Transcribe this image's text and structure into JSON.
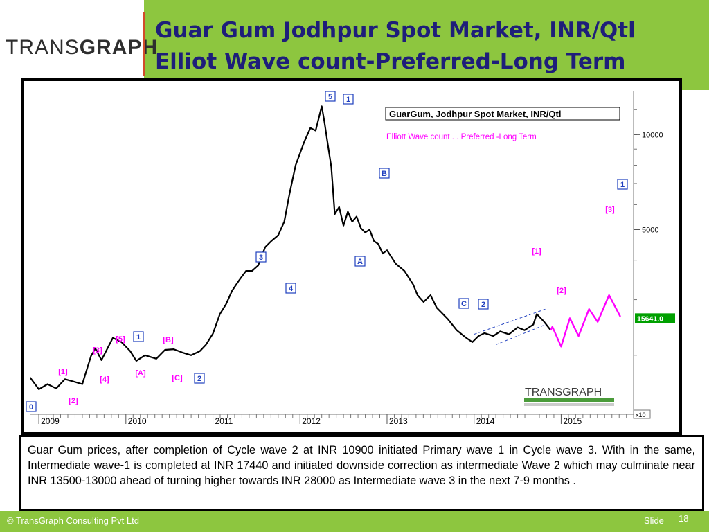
{
  "header": {
    "logo_thin": "TRANS",
    "logo_bold": "GRAPH",
    "title_line1": "Guar Gum Jodhpur Spot Market, INR/Qtl",
    "title_line2": "Elliot Wave count-Preferred-Long Term"
  },
  "chart_data": {
    "type": "line",
    "title": "GuarGum, Jodhpur Spot Market, INR/Qtl",
    "subtitle": "Elliott Wave count . . Preferred -Long Term",
    "y_scale": "log",
    "x_tick_labels": [
      "2009",
      "2010",
      "2011",
      "2012",
      "2013",
      "2014",
      "2015"
    ],
    "y_tick_labels": [
      "10000",
      "5000"
    ],
    "y_ticks": [
      10000,
      5000
    ],
    "x_multiplier_label": "x10",
    "last_price_label": "15641.0",
    "last_price_color": "#00a000",
    "projection_color": "#ff00ff",
    "price_color": "#000000",
    "series": [
      {
        "values": [
          [
            2008.9,
            1700
          ],
          [
            2009.0,
            1560
          ],
          [
            2009.1,
            1620
          ],
          [
            2009.2,
            1570
          ],
          [
            2009.3,
            1680
          ],
          [
            2009.4,
            1650
          ],
          [
            2009.5,
            1620
          ],
          [
            2009.6,
            1990
          ],
          [
            2009.65,
            2100
          ],
          [
            2009.72,
            1930
          ],
          [
            2009.85,
            2270
          ],
          [
            2009.95,
            2200
          ],
          [
            2010.05,
            2060
          ],
          [
            2010.12,
            1920
          ],
          [
            2010.22,
            2000
          ],
          [
            2010.35,
            1950
          ],
          [
            2010.45,
            2080
          ],
          [
            2010.55,
            2090
          ],
          [
            2010.65,
            2040
          ],
          [
            2010.75,
            2000
          ],
          [
            2010.85,
            2060
          ],
          [
            2010.92,
            2160
          ],
          [
            2011.0,
            2340
          ],
          [
            2011.08,
            2700
          ],
          [
            2011.15,
            2900
          ],
          [
            2011.22,
            3200
          ],
          [
            2011.3,
            3450
          ],
          [
            2011.38,
            3700
          ],
          [
            2011.45,
            3700
          ],
          [
            2011.52,
            3850
          ],
          [
            2011.6,
            4400
          ],
          [
            2011.67,
            4600
          ],
          [
            2011.75,
            4800
          ],
          [
            2011.82,
            5300
          ],
          [
            2011.88,
            6500
          ],
          [
            2011.95,
            8000
          ],
          [
            2012.05,
            9500
          ],
          [
            2012.12,
            10500
          ],
          [
            2012.18,
            10300
          ],
          [
            2012.25,
            12300
          ],
          [
            2012.28,
            11000
          ],
          [
            2012.32,
            9300
          ],
          [
            2012.36,
            7900
          ],
          [
            2012.4,
            5600
          ],
          [
            2012.45,
            5900
          ],
          [
            2012.5,
            5150
          ],
          [
            2012.55,
            5700
          ],
          [
            2012.6,
            5300
          ],
          [
            2012.65,
            5500
          ],
          [
            2012.7,
            5050
          ],
          [
            2012.75,
            4900
          ],
          [
            2012.8,
            5000
          ],
          [
            2012.85,
            4600
          ],
          [
            2012.9,
            4500
          ],
          [
            2012.95,
            4200
          ],
          [
            2013.0,
            4300
          ],
          [
            2013.1,
            3900
          ],
          [
            2013.2,
            3700
          ],
          [
            2013.3,
            3350
          ],
          [
            2013.35,
            3100
          ],
          [
            2013.42,
            2950
          ],
          [
            2013.5,
            3100
          ],
          [
            2013.57,
            2830
          ],
          [
            2013.7,
            2600
          ],
          [
            2013.8,
            2400
          ],
          [
            2013.9,
            2280
          ],
          [
            2013.98,
            2200
          ],
          [
            2014.05,
            2300
          ],
          [
            2014.12,
            2350
          ],
          [
            2014.22,
            2300
          ],
          [
            2014.3,
            2380
          ],
          [
            2014.4,
            2330
          ],
          [
            2014.5,
            2450
          ],
          [
            2014.58,
            2400
          ],
          [
            2014.68,
            2500
          ],
          [
            2014.72,
            2700
          ],
          [
            2014.8,
            2560
          ],
          [
            2014.88,
            2400
          ]
        ]
      },
      {
        "values": [
          [
            2014.9,
            2460
          ],
          [
            2015.0,
            2130
          ],
          [
            2015.1,
            2620
          ],
          [
            2015.2,
            2300
          ],
          [
            2015.32,
            2800
          ],
          [
            2015.42,
            2550
          ],
          [
            2015.55,
            3100
          ],
          [
            2015.68,
            2650
          ]
        ]
      }
    ],
    "annotations": [
      {
        "label": "0",
        "boxed": true,
        "color": "#1f3fbf"
      },
      {
        "label": "[1]",
        "boxed": false,
        "color": "#ff00ff"
      },
      {
        "label": "[2]",
        "boxed": false,
        "color": "#ff00ff"
      },
      {
        "label": "[3]",
        "boxed": false,
        "color": "#ff00ff"
      },
      {
        "label": "[4]",
        "boxed": false,
        "color": "#ff00ff"
      },
      {
        "label": "[5]",
        "boxed": false,
        "color": "#ff00ff"
      },
      {
        "label": "1",
        "boxed": true,
        "color": "#1f3fbf"
      },
      {
        "label": "[A]",
        "boxed": false,
        "color": "#ff00ff"
      },
      {
        "label": "[B]",
        "boxed": false,
        "color": "#ff00ff"
      },
      {
        "label": "[C]",
        "boxed": false,
        "color": "#ff00ff"
      },
      {
        "label": "2",
        "boxed": true,
        "color": "#1f3fbf"
      },
      {
        "label": "3",
        "boxed": true,
        "color": "#1f3fbf"
      },
      {
        "label": "4",
        "boxed": true,
        "color": "#1f3fbf"
      },
      {
        "label": "5",
        "boxed": true,
        "color": "#1f3fbf"
      },
      {
        "label": "1",
        "boxed": true,
        "color": "#1f3fbf"
      },
      {
        "label": "A",
        "boxed": true,
        "color": "#1f3fbf"
      },
      {
        "label": "B",
        "boxed": true,
        "color": "#1f3fbf"
      },
      {
        "label": "C",
        "boxed": true,
        "color": "#1f3fbf"
      },
      {
        "label": "2",
        "boxed": true,
        "color": "#1f3fbf"
      },
      {
        "label": "[1]",
        "boxed": false,
        "color": "#ff00ff"
      },
      {
        "label": "[2]",
        "boxed": false,
        "color": "#ff00ff"
      },
      {
        "label": "[3]",
        "boxed": false,
        "color": "#ff00ff"
      },
      {
        "label": "1",
        "boxed": true,
        "color": "#1f3fbf"
      }
    ],
    "watermark_logo": "TRANSGRAPH"
  },
  "note": "Guar Gum prices, after completion of Cycle wave 2 at INR 10900 initiated Primary wave 1 in Cycle wave 3. With in the same, Intermediate wave-1 is completed at INR 17440 and initiated downside correction as intermediate Wave 2 which may culminate near INR 13500-13000 ahead of turning higher towards INR 28000 as Intermediate wave 3 in the next 7-9 months .",
  "footer": {
    "copyright": "© TransGraph Consulting Pvt Ltd",
    "slide_label": "Slide",
    "slide_number": "18"
  }
}
